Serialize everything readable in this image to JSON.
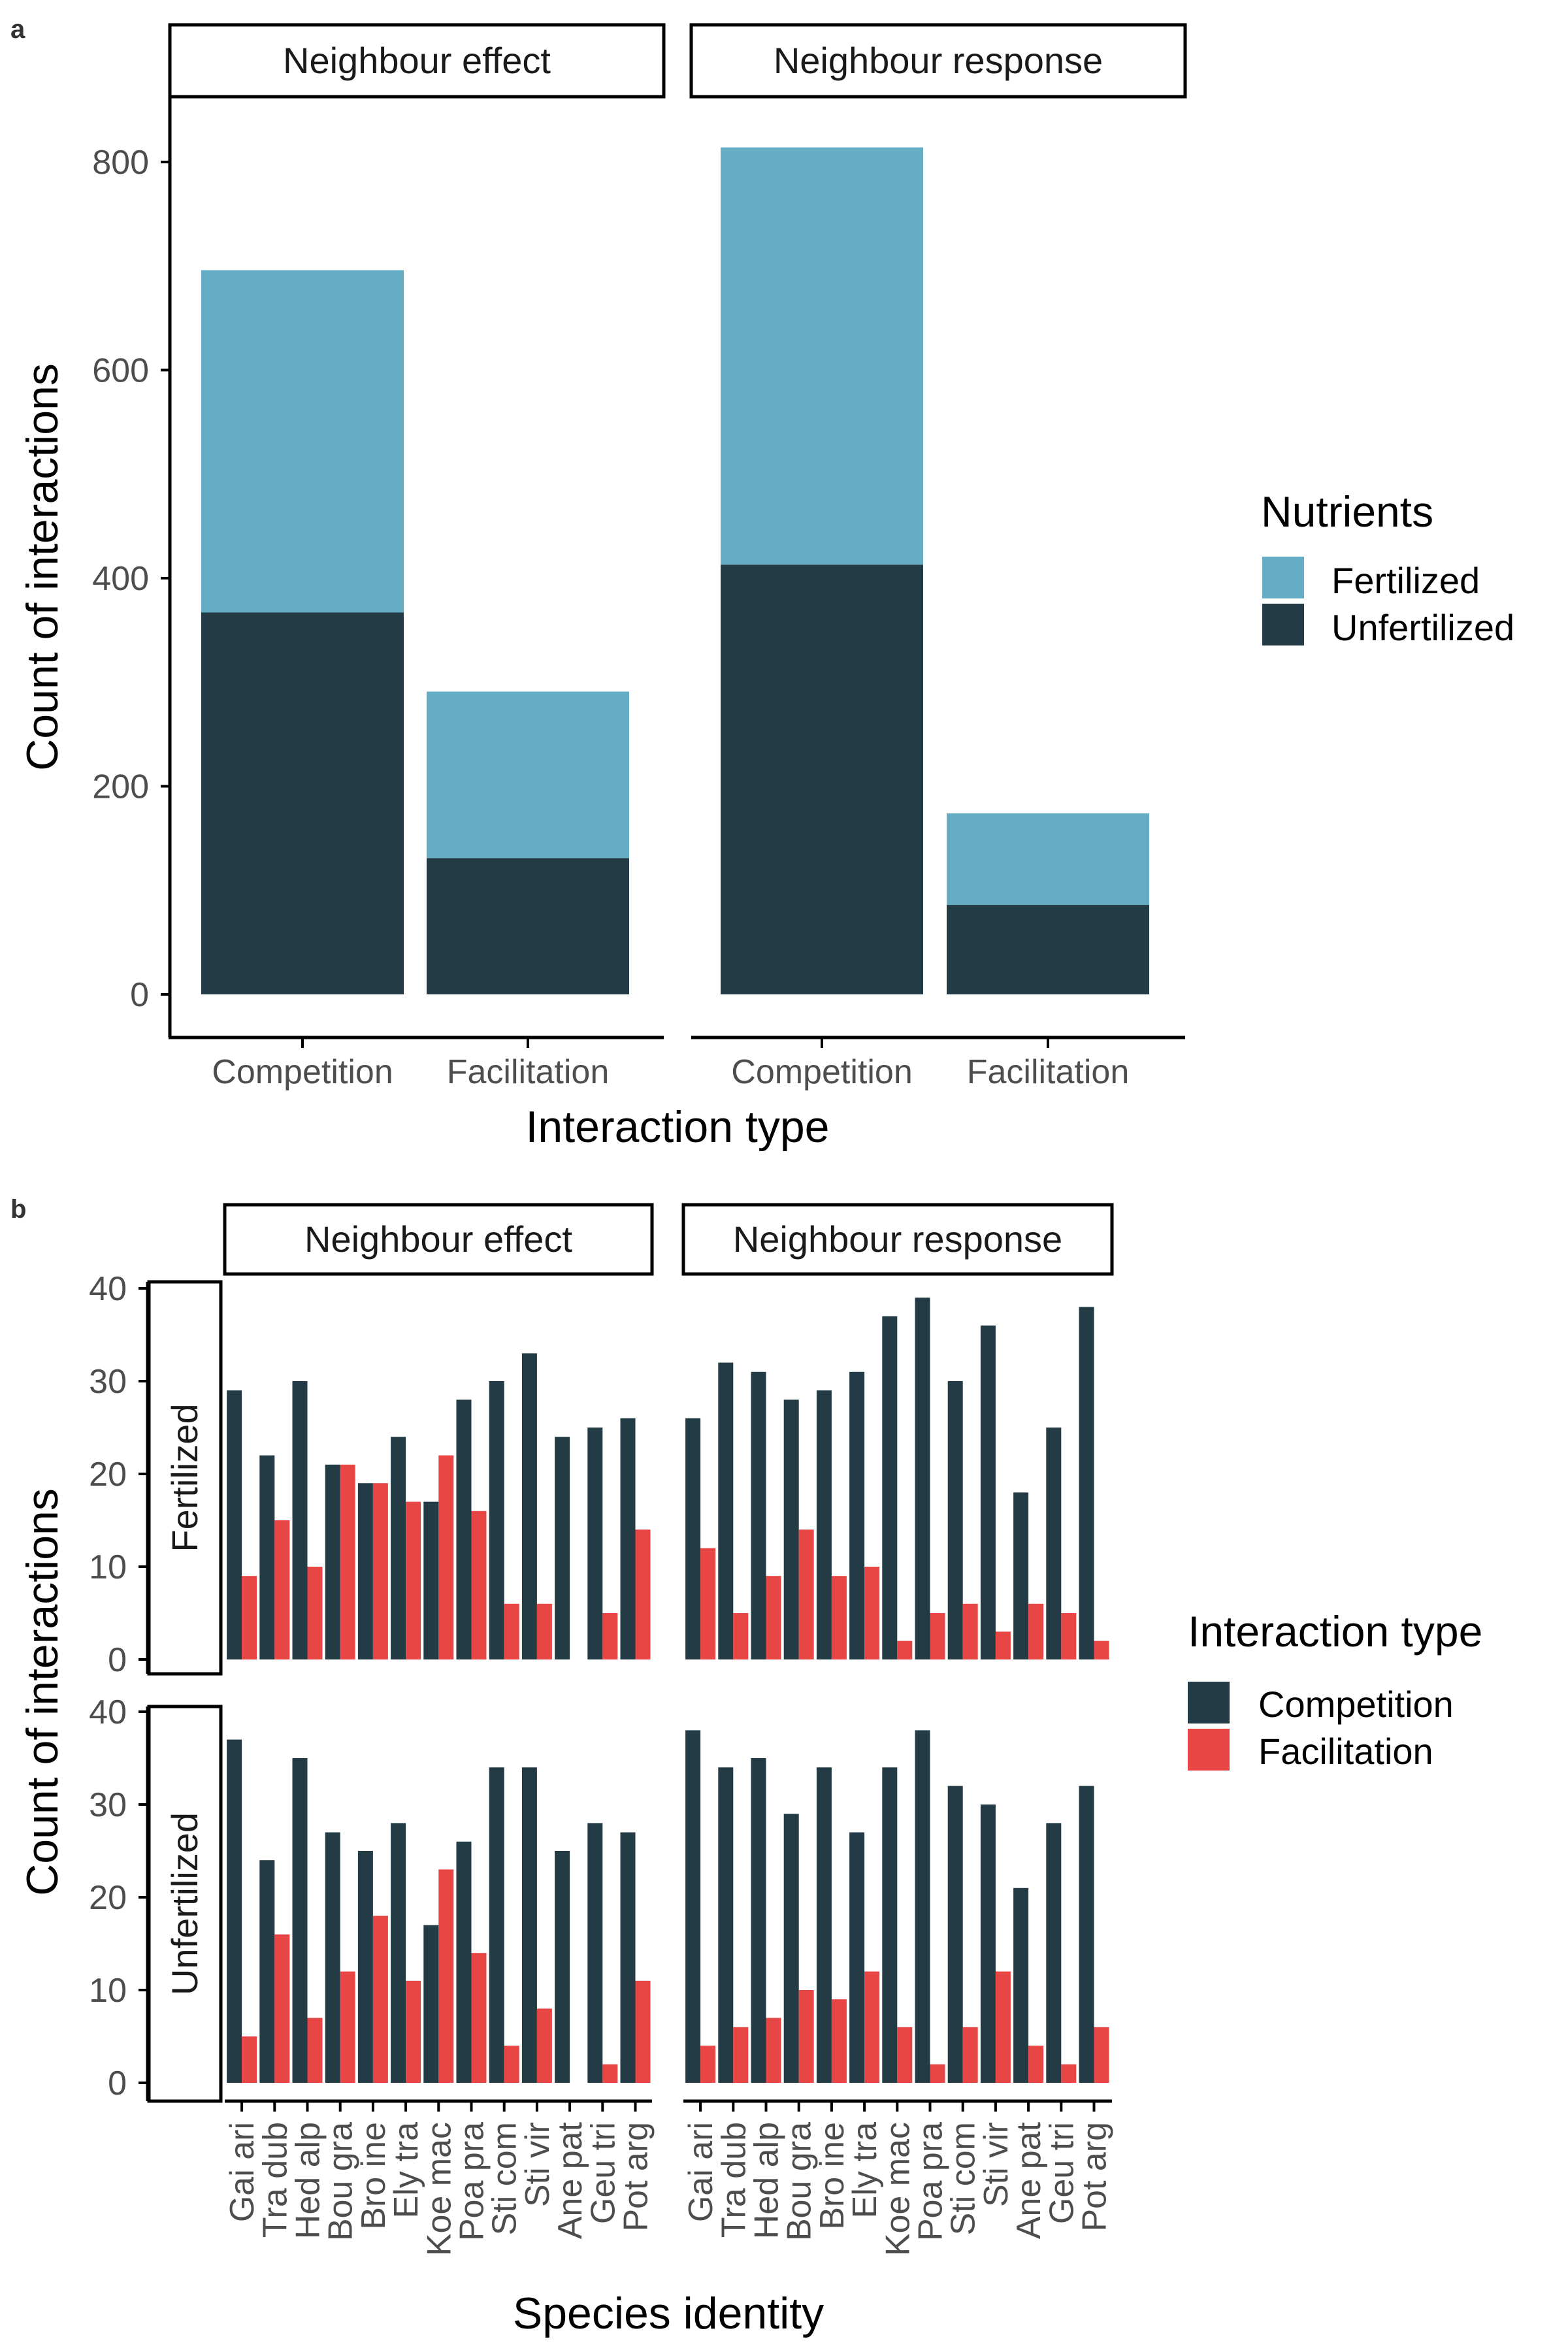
{
  "panel_labels": {
    "a": "a",
    "b": "b"
  },
  "colors": {
    "fertilized": "#64adc4",
    "unfertilized": "#233b45",
    "competition": "#233b45",
    "facilitation": "#e84545",
    "axis": "#000000",
    "tick_text": "#4d4d4d"
  },
  "chart_data": [
    {
      "panel": "a",
      "type": "bar",
      "stacked": true,
      "facets": [
        "Neighbour effect",
        "Neighbour response"
      ],
      "categories": [
        "Competition",
        "Facilitation"
      ],
      "series": [
        {
          "name": "Unfertilized",
          "values": {
            "Neighbour effect": [
              367,
              131
            ],
            "Neighbour response": [
              413,
              86
            ]
          }
        },
        {
          "name": "Fertilized",
          "values": {
            "Neighbour effect": [
              329,
              160
            ],
            "Neighbour response": [
              401,
              88
            ]
          }
        }
      ],
      "totals": {
        "Neighbour effect": [
          696,
          291
        ],
        "Neighbour response": [
          814,
          174
        ]
      },
      "xlabel": "Interaction type",
      "ylabel": "Count of interactions",
      "ylim": [
        0,
        850
      ],
      "yticks": [
        0,
        200,
        400,
        600,
        800
      ],
      "legend": {
        "title": "Nutrients",
        "entries": [
          "Fertilized",
          "Unfertilized"
        ],
        "position": "right"
      },
      "grid": false
    },
    {
      "panel": "b",
      "type": "bar",
      "grouped": true,
      "facet_columns": [
        "Neighbour effect",
        "Neighbour response"
      ],
      "facet_rows": [
        "Fertilized",
        "Unfertilized"
      ],
      "categories": [
        "Gai ari",
        "Tra dub",
        "Hed alp",
        "Bou gra",
        "Bro ine",
        "Ely tra",
        "Koe mac",
        "Poa pra",
        "Sti com",
        "Sti vir",
        "Ane pat",
        "Geu tri",
        "Pot arg"
      ],
      "series_names": [
        "Competition",
        "Facilitation"
      ],
      "values": {
        "Fertilized": {
          "Neighbour effect": {
            "Competition": [
              29,
              22,
              30,
              21,
              19,
              24,
              17,
              28,
              30,
              33,
              24,
              25,
              26
            ],
            "Facilitation": [
              9,
              15,
              10,
              21,
              19,
              17,
              22,
              16,
              6,
              6,
              0,
              5,
              14
            ]
          },
          "Neighbour response": {
            "Competition": [
              26,
              32,
              31,
              28,
              29,
              31,
              37,
              39,
              30,
              36,
              18,
              25,
              38
            ],
            "Facilitation": [
              12,
              5,
              9,
              14,
              9,
              10,
              2,
              5,
              6,
              3,
              6,
              5,
              2
            ]
          }
        },
        "Unfertilized": {
          "Neighbour effect": {
            "Competition": [
              37,
              24,
              35,
              27,
              25,
              28,
              17,
              26,
              34,
              34,
              25,
              28,
              27
            ],
            "Facilitation": [
              5,
              16,
              7,
              12,
              18,
              11,
              23,
              14,
              4,
              8,
              0,
              2,
              11
            ]
          },
          "Neighbour response": {
            "Competition": [
              38,
              34,
              35,
              29,
              34,
              27,
              34,
              38,
              32,
              30,
              21,
              28,
              32
            ],
            "Facilitation": [
              4,
              6,
              7,
              10,
              9,
              12,
              6,
              2,
              6,
              12,
              4,
              2,
              6
            ]
          }
        }
      },
      "xlabel": "Species identity",
      "ylabel": "Count of interactions",
      "ylim": [
        0,
        41
      ],
      "yticks": [
        0,
        10,
        20,
        30,
        40
      ],
      "legend": {
        "title": "Interaction type",
        "entries": [
          "Competition",
          "Facilitation"
        ],
        "position": "right"
      },
      "grid": false
    }
  ]
}
